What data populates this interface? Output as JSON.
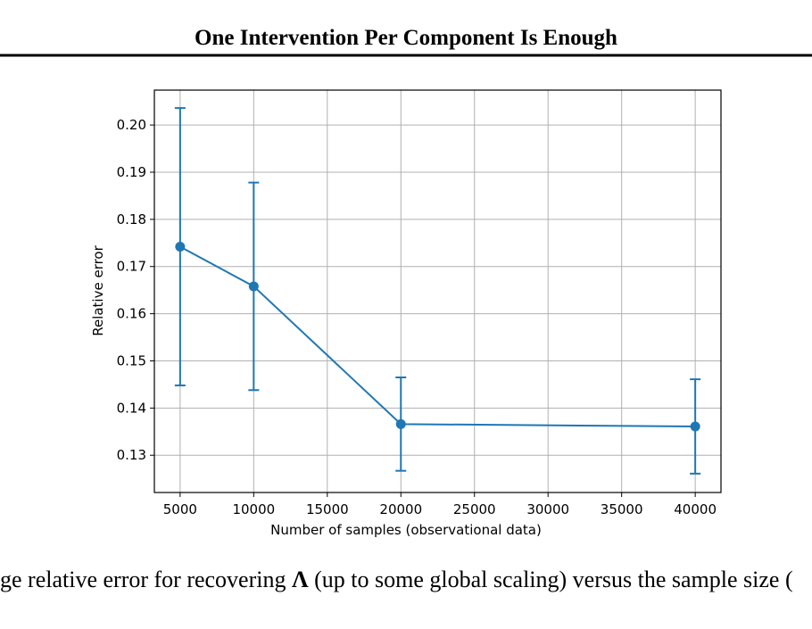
{
  "header": {
    "title": "One Intervention Per Component Is Enough"
  },
  "chart_data": {
    "type": "errorbar",
    "xlabel": "Number of samples (observational data)",
    "ylabel": "Relative error",
    "x": [
      5000,
      10000,
      20000,
      40000
    ],
    "series": [
      {
        "color": "#1f77b4",
        "values": [
          0.1742,
          0.1658,
          0.1366,
          0.1361
        ],
        "errors": [
          0.0294,
          0.022,
          0.0099,
          0.01
        ]
      }
    ],
    "xlim": [
      3250,
      41750
    ],
    "xticks": [
      5000,
      10000,
      15000,
      20000,
      25000,
      30000,
      35000,
      40000
    ],
    "ylim": [
      0.1221,
      0.2074
    ],
    "yticks": [
      0.13,
      0.14,
      0.15,
      0.16,
      0.17,
      0.18,
      0.19,
      {
        "value": 0.2,
        "label": "0.20"
      }
    ],
    "grid": true
  },
  "caption": {
    "before": "ge relative error for recovering ",
    "symbol": "Λ",
    "after": " (up to some global scaling) versus the sample size ("
  }
}
